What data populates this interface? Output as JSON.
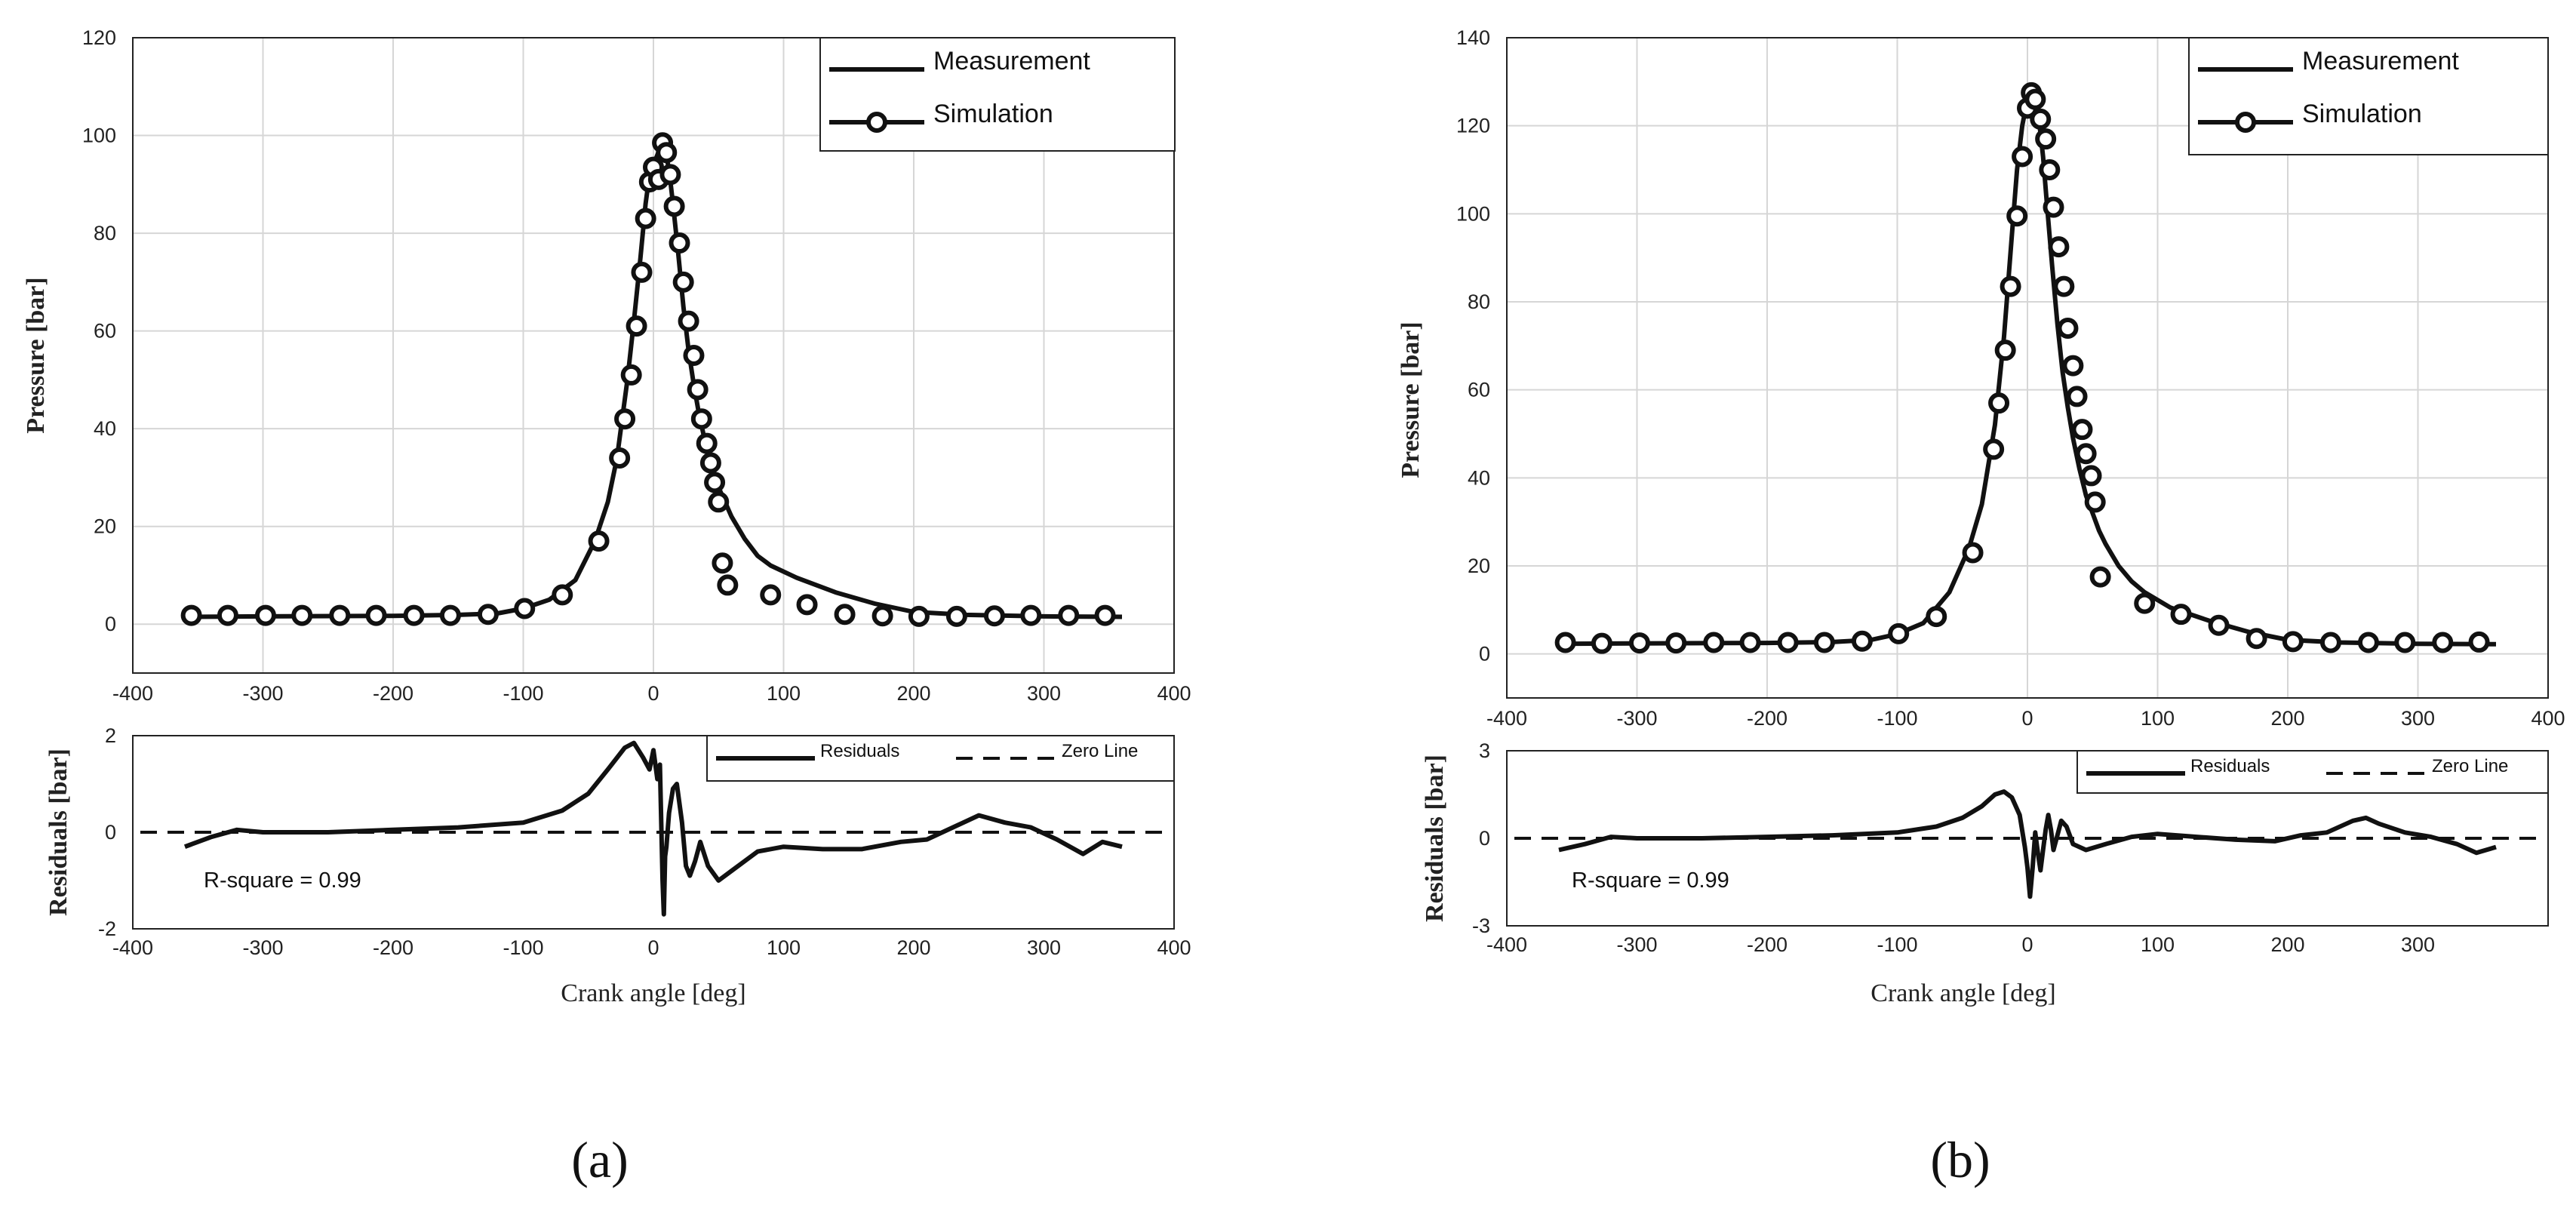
{
  "figure": {
    "panel_labels": [
      "(a)",
      "(b)"
    ]
  },
  "chart_data": [
    {
      "type": "line",
      "panel": "(a)",
      "pressure": {
        "ylabel": "Pressure [bar]",
        "xlim": [
          -400,
          400
        ],
        "ylim": [
          -10,
          120
        ],
        "xticks": [
          -400,
          -300,
          -200,
          -100,
          0,
          100,
          200,
          300,
          400
        ],
        "yticks": [
          0,
          20,
          40,
          60,
          80,
          100,
          120
        ],
        "grid": true,
        "legend": {
          "position": "top-right",
          "entries": [
            "Measurement",
            "Simulation"
          ]
        },
        "measurement": {
          "name": "Measurement",
          "x": [
            -360,
            -300,
            -200,
            -150,
            -120,
            -100,
            -80,
            -60,
            -45,
            -35,
            -28,
            -20,
            -15,
            -10,
            -6,
            -3,
            0,
            3,
            6,
            9,
            12,
            15,
            19,
            23,
            27,
            31,
            35,
            40,
            45,
            50,
            55,
            60,
            70,
            80,
            90,
            110,
            140,
            170,
            200,
            240,
            300,
            360
          ],
          "y": [
            1.5,
            1.6,
            1.7,
            1.9,
            2.2,
            3.2,
            5,
            9,
            17,
            25,
            34,
            50,
            62,
            75,
            86,
            92,
            94,
            96,
            98,
            97,
            93,
            86,
            76,
            65,
            56,
            49,
            43,
            37,
            32,
            28,
            25,
            22,
            17.5,
            14,
            12,
            9.5,
            6.5,
            4.2,
            2.5,
            1.9,
            1.6,
            1.5
          ]
        },
        "simulation": {
          "name": "Simulation",
          "x": [
            -355,
            -327,
            -298,
            -270,
            -241,
            -213,
            -184,
            -156,
            -127,
            -99,
            -70,
            -42,
            -26,
            -22,
            -17,
            -13,
            -9,
            -6,
            -3,
            0,
            4,
            7,
            10,
            13,
            16,
            20,
            23,
            27,
            31,
            34,
            37,
            41,
            44,
            47,
            50,
            53,
            57,
            90,
            118,
            147,
            176,
            204,
            233,
            262,
            290,
            319,
            347
          ],
          "y": [
            1.8,
            1.8,
            1.8,
            1.8,
            1.8,
            1.8,
            1.8,
            1.8,
            2.0,
            3.2,
            6.0,
            17.0,
            34.0,
            42.0,
            51.0,
            61.0,
            72.0,
            83.0,
            90.5,
            93.5,
            91.0,
            98.5,
            96.5,
            92.0,
            85.5,
            78.0,
            70.0,
            62.0,
            55.0,
            48.0,
            42.0,
            37.0,
            33.0,
            29.0,
            25.0,
            12.5,
            8.0,
            6.0,
            4.0,
            2.0,
            1.7,
            1.6,
            1.6,
            1.7,
            1.8,
            1.8,
            1.8
          ]
        }
      },
      "residuals": {
        "ylabel": "Residuals [bar]",
        "xlabel": "Crank angle [deg]",
        "xlim": [
          -400,
          400
        ],
        "ylim": [
          -2,
          2
        ],
        "xticks": [
          -400,
          -300,
          -200,
          -100,
          0,
          100,
          200,
          300,
          400
        ],
        "yticks": [
          -2,
          0,
          2
        ],
        "legend": {
          "position": "top-right",
          "entries": [
            "Residuals",
            "Zero Line"
          ]
        },
        "annotation": "R-square = 0.99",
        "residual": {
          "name": "Residuals",
          "x": [
            -360,
            -340,
            -320,
            -300,
            -250,
            -200,
            -150,
            -100,
            -70,
            -50,
            -35,
            -22,
            -15,
            -8,
            -3,
            0,
            3,
            5,
            7,
            8,
            9,
            10,
            12,
            15,
            18,
            22,
            25,
            28,
            32,
            36,
            42,
            50,
            60,
            80,
            100,
            130,
            160,
            190,
            210,
            230,
            250,
            270,
            290,
            310,
            330,
            345,
            360
          ],
          "y": [
            -0.3,
            -0.1,
            0.05,
            0,
            0,
            0.05,
            0.1,
            0.2,
            0.45,
            0.8,
            1.3,
            1.75,
            1.85,
            1.55,
            1.3,
            1.7,
            1.1,
            1.4,
            -1.0,
            -1.7,
            -0.5,
            -0.3,
            0.4,
            0.9,
            1.0,
            0.2,
            -0.7,
            -0.9,
            -0.6,
            -0.2,
            -0.7,
            -1.0,
            -0.8,
            -0.4,
            -0.3,
            -0.35,
            -0.35,
            -0.2,
            -0.15,
            0.1,
            0.35,
            0.2,
            0.1,
            -0.15,
            -0.45,
            -0.2,
            -0.3
          ]
        },
        "zero_line": {
          "name": "Zero Line",
          "value": 0
        }
      }
    },
    {
      "type": "line",
      "panel": "(b)",
      "pressure": {
        "ylabel": "Pressure [bar]",
        "xlim": [
          -400,
          400
        ],
        "ylim": [
          -10,
          140
        ],
        "xticks": [
          -400,
          -300,
          -200,
          -100,
          0,
          100,
          200,
          300,
          400
        ],
        "yticks": [
          0,
          20,
          40,
          60,
          80,
          100,
          120,
          140
        ],
        "grid": true,
        "legend": {
          "position": "top-right",
          "entries": [
            "Measurement",
            "Simulation"
          ]
        },
        "measurement": {
          "name": "Measurement",
          "x": [
            -360,
            -300,
            -200,
            -150,
            -120,
            -100,
            -80,
            -60,
            -45,
            -35,
            -25,
            -18,
            -12,
            -8,
            -4,
            0,
            3,
            6,
            9,
            12,
            15,
            19,
            23,
            27,
            31,
            35,
            40,
            45,
            50,
            55,
            60,
            70,
            80,
            90,
            110,
            140,
            170,
            200,
            240,
            300,
            360
          ],
          "y": [
            2.3,
            2.4,
            2.5,
            2.7,
            3.2,
            4.5,
            7,
            14,
            24,
            34,
            52,
            72,
            95,
            110,
            120,
            126,
            127,
            125,
            121,
            113,
            102,
            88,
            75,
            64,
            56,
            49,
            42,
            36,
            32,
            28,
            25,
            20,
            16.5,
            14,
            10.5,
            7.5,
            5,
            3.2,
            2.6,
            2.3,
            2.2
          ]
        },
        "simulation": {
          "name": "Simulation",
          "x": [
            -355,
            -327,
            -298,
            -270,
            -241,
            -213,
            -184,
            -156,
            -127,
            -99,
            -70,
            -42,
            -26,
            -22,
            -17,
            -13,
            -8,
            -4,
            0,
            3,
            6,
            10,
            14,
            17,
            20,
            24,
            28,
            31,
            35,
            38,
            42,
            45,
            49,
            52,
            56,
            90,
            118,
            147,
            176,
            204,
            233,
            262,
            290,
            319,
            347
          ],
          "y": [
            2.6,
            2.4,
            2.5,
            2.5,
            2.6,
            2.6,
            2.6,
            2.6,
            2.9,
            4.6,
            8.5,
            23.0,
            46.5,
            57.0,
            69.0,
            83.5,
            99.5,
            113.0,
            124.0,
            127.5,
            126.0,
            121.5,
            117.0,
            110.0,
            101.5,
            92.5,
            83.5,
            74.0,
            65.5,
            58.5,
            51.0,
            45.5,
            40.5,
            34.5,
            17.5,
            11.5,
            9.0,
            6.5,
            3.5,
            2.8,
            2.6,
            2.6,
            2.6,
            2.6,
            2.7
          ]
        }
      },
      "residuals": {
        "ylabel": "Residuals [bar]",
        "xlabel": "Crank angle [deg]",
        "xlim": [
          -400,
          400
        ],
        "ylim": [
          -3,
          3
        ],
        "xticks": [
          -400,
          -300,
          -200,
          -100,
          0,
          100,
          200,
          300
        ],
        "yticks": [
          -3,
          0,
          3
        ],
        "legend": {
          "position": "top-right",
          "entries": [
            "Residuals",
            "Zero Line"
          ]
        },
        "annotation": "R-square = 0.99",
        "residual": {
          "name": "Residuals",
          "x": [
            -360,
            -340,
            -320,
            -300,
            -250,
            -200,
            -150,
            -100,
            -70,
            -50,
            -35,
            -25,
            -18,
            -12,
            -6,
            -2,
            0,
            2,
            4,
            6,
            8,
            10,
            12,
            14,
            16,
            18,
            20,
            23,
            26,
            30,
            35,
            45,
            60,
            80,
            100,
            130,
            160,
            190,
            210,
            230,
            250,
            260,
            270,
            290,
            310,
            330,
            345,
            360
          ],
          "y": [
            -0.4,
            -0.2,
            0.05,
            0,
            0,
            0.05,
            0.1,
            0.2,
            0.4,
            0.7,
            1.1,
            1.5,
            1.6,
            1.4,
            0.8,
            -0.3,
            -1.0,
            -2.0,
            -1.0,
            0.2,
            -0.5,
            -1.1,
            -0.4,
            0.3,
            0.8,
            0.3,
            -0.4,
            0.1,
            0.6,
            0.4,
            -0.2,
            -0.4,
            -0.2,
            0.05,
            0.15,
            0.05,
            -0.05,
            -0.1,
            0.1,
            0.2,
            0.6,
            0.7,
            0.5,
            0.2,
            0.05,
            -0.2,
            -0.5,
            -0.3
          ]
        },
        "zero_line": {
          "name": "Zero Line",
          "value": 0
        }
      }
    }
  ]
}
